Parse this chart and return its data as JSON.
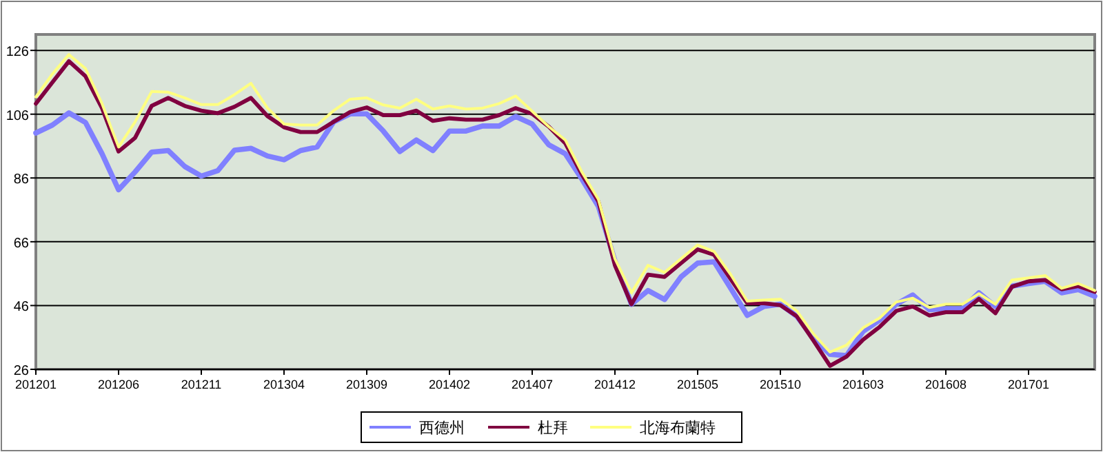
{
  "chart_data": {
    "type": "line",
    "categories": [
      "201201",
      null,
      null,
      null,
      null,
      "201206",
      null,
      null,
      null,
      null,
      "201211",
      null,
      null,
      null,
      null,
      "201304",
      null,
      null,
      null,
      null,
      "201309",
      null,
      null,
      null,
      null,
      "201402",
      null,
      null,
      null,
      null,
      "201407",
      null,
      null,
      null,
      null,
      "201412",
      null,
      null,
      null,
      null,
      "201505",
      null,
      null,
      null,
      null,
      "201510",
      null,
      null,
      null,
      null,
      "201603",
      null,
      null,
      null,
      null,
      "201608",
      null,
      null,
      null,
      null,
      "201701",
      null,
      null,
      null,
      null
    ],
    "series": [
      {
        "name": "西德州",
        "color": "#8080ff",
        "values": [
          100.1,
          102.6,
          106.4,
          103.4,
          93.6,
          82.3,
          87.9,
          94.1,
          94.6,
          89.6,
          86.6,
          88.3,
          94.7,
          95.3,
          92.9,
          91.7,
          94.6,
          95.7,
          103.6,
          106.1,
          106.1,
          100.7,
          94.3,
          97.9,
          94.6,
          100.7,
          100.7,
          102.3,
          102.3,
          105.3,
          102.9,
          96.4,
          93.6,
          85.7,
          77.1,
          60,
          46.4,
          50.7,
          47.9,
          55,
          59.3,
          59.7,
          51.4,
          42.9,
          45.7,
          46.4,
          42.6,
          35.7,
          30.7,
          30.3,
          37.9,
          41.4,
          46.4,
          49.3,
          44.7,
          45,
          45,
          50,
          45.7,
          52.1,
          52.9,
          53.6,
          50,
          51,
          48.9
        ]
      },
      {
        "name": "杜拜",
        "color": "#800040",
        "values": [
          109.3,
          116,
          122.6,
          117.9,
          107.9,
          94.3,
          98.6,
          108.6,
          111.1,
          108.6,
          107.1,
          106.3,
          108.3,
          111.1,
          105.4,
          101.9,
          100.4,
          100.4,
          103.6,
          106.7,
          108.1,
          105.7,
          105.7,
          107.1,
          103.9,
          104.7,
          104.3,
          104.3,
          105.7,
          107.9,
          106.1,
          102.1,
          96.9,
          87.1,
          78.6,
          58.6,
          46.4,
          55.7,
          55,
          59.3,
          63.6,
          61.9,
          54.3,
          46.7,
          46.7,
          46.1,
          42.6,
          35,
          27.1,
          30,
          35.3,
          39.3,
          44.3,
          45.7,
          42.9,
          43.9,
          43.9,
          48.1,
          43.6,
          51.9,
          53.6,
          54,
          51.1,
          52.1,
          50.3
        ]
      },
      {
        "name": "北海布蘭特",
        "color": "#ffff80",
        "values": [
          111.4,
          118.6,
          124.7,
          120.3,
          109.3,
          95.7,
          103.6,
          113.1,
          112.9,
          111.1,
          109,
          109,
          112.1,
          115.7,
          107.9,
          102.9,
          102.6,
          102.6,
          107.1,
          110.7,
          111.1,
          108.9,
          107.9,
          110.7,
          107.6,
          108.6,
          107.6,
          107.9,
          109.3,
          111.7,
          106.9,
          102.1,
          97.9,
          87.9,
          79.3,
          60.7,
          50,
          58.6,
          56.4,
          60.7,
          65,
          62.9,
          55.7,
          47.4,
          47.7,
          48,
          44.3,
          37.1,
          31.4,
          33.6,
          39,
          42.1,
          47.1,
          48.3,
          45.4,
          46.4,
          46.4,
          49.7,
          46.4,
          54,
          54.7,
          55.4,
          51.4,
          52.9,
          50.7
        ]
      }
    ],
    "ylim": [
      26,
      131
    ],
    "yticks": [
      26,
      46,
      66,
      86,
      106,
      126
    ],
    "grid": "y",
    "legend": "bottom"
  }
}
